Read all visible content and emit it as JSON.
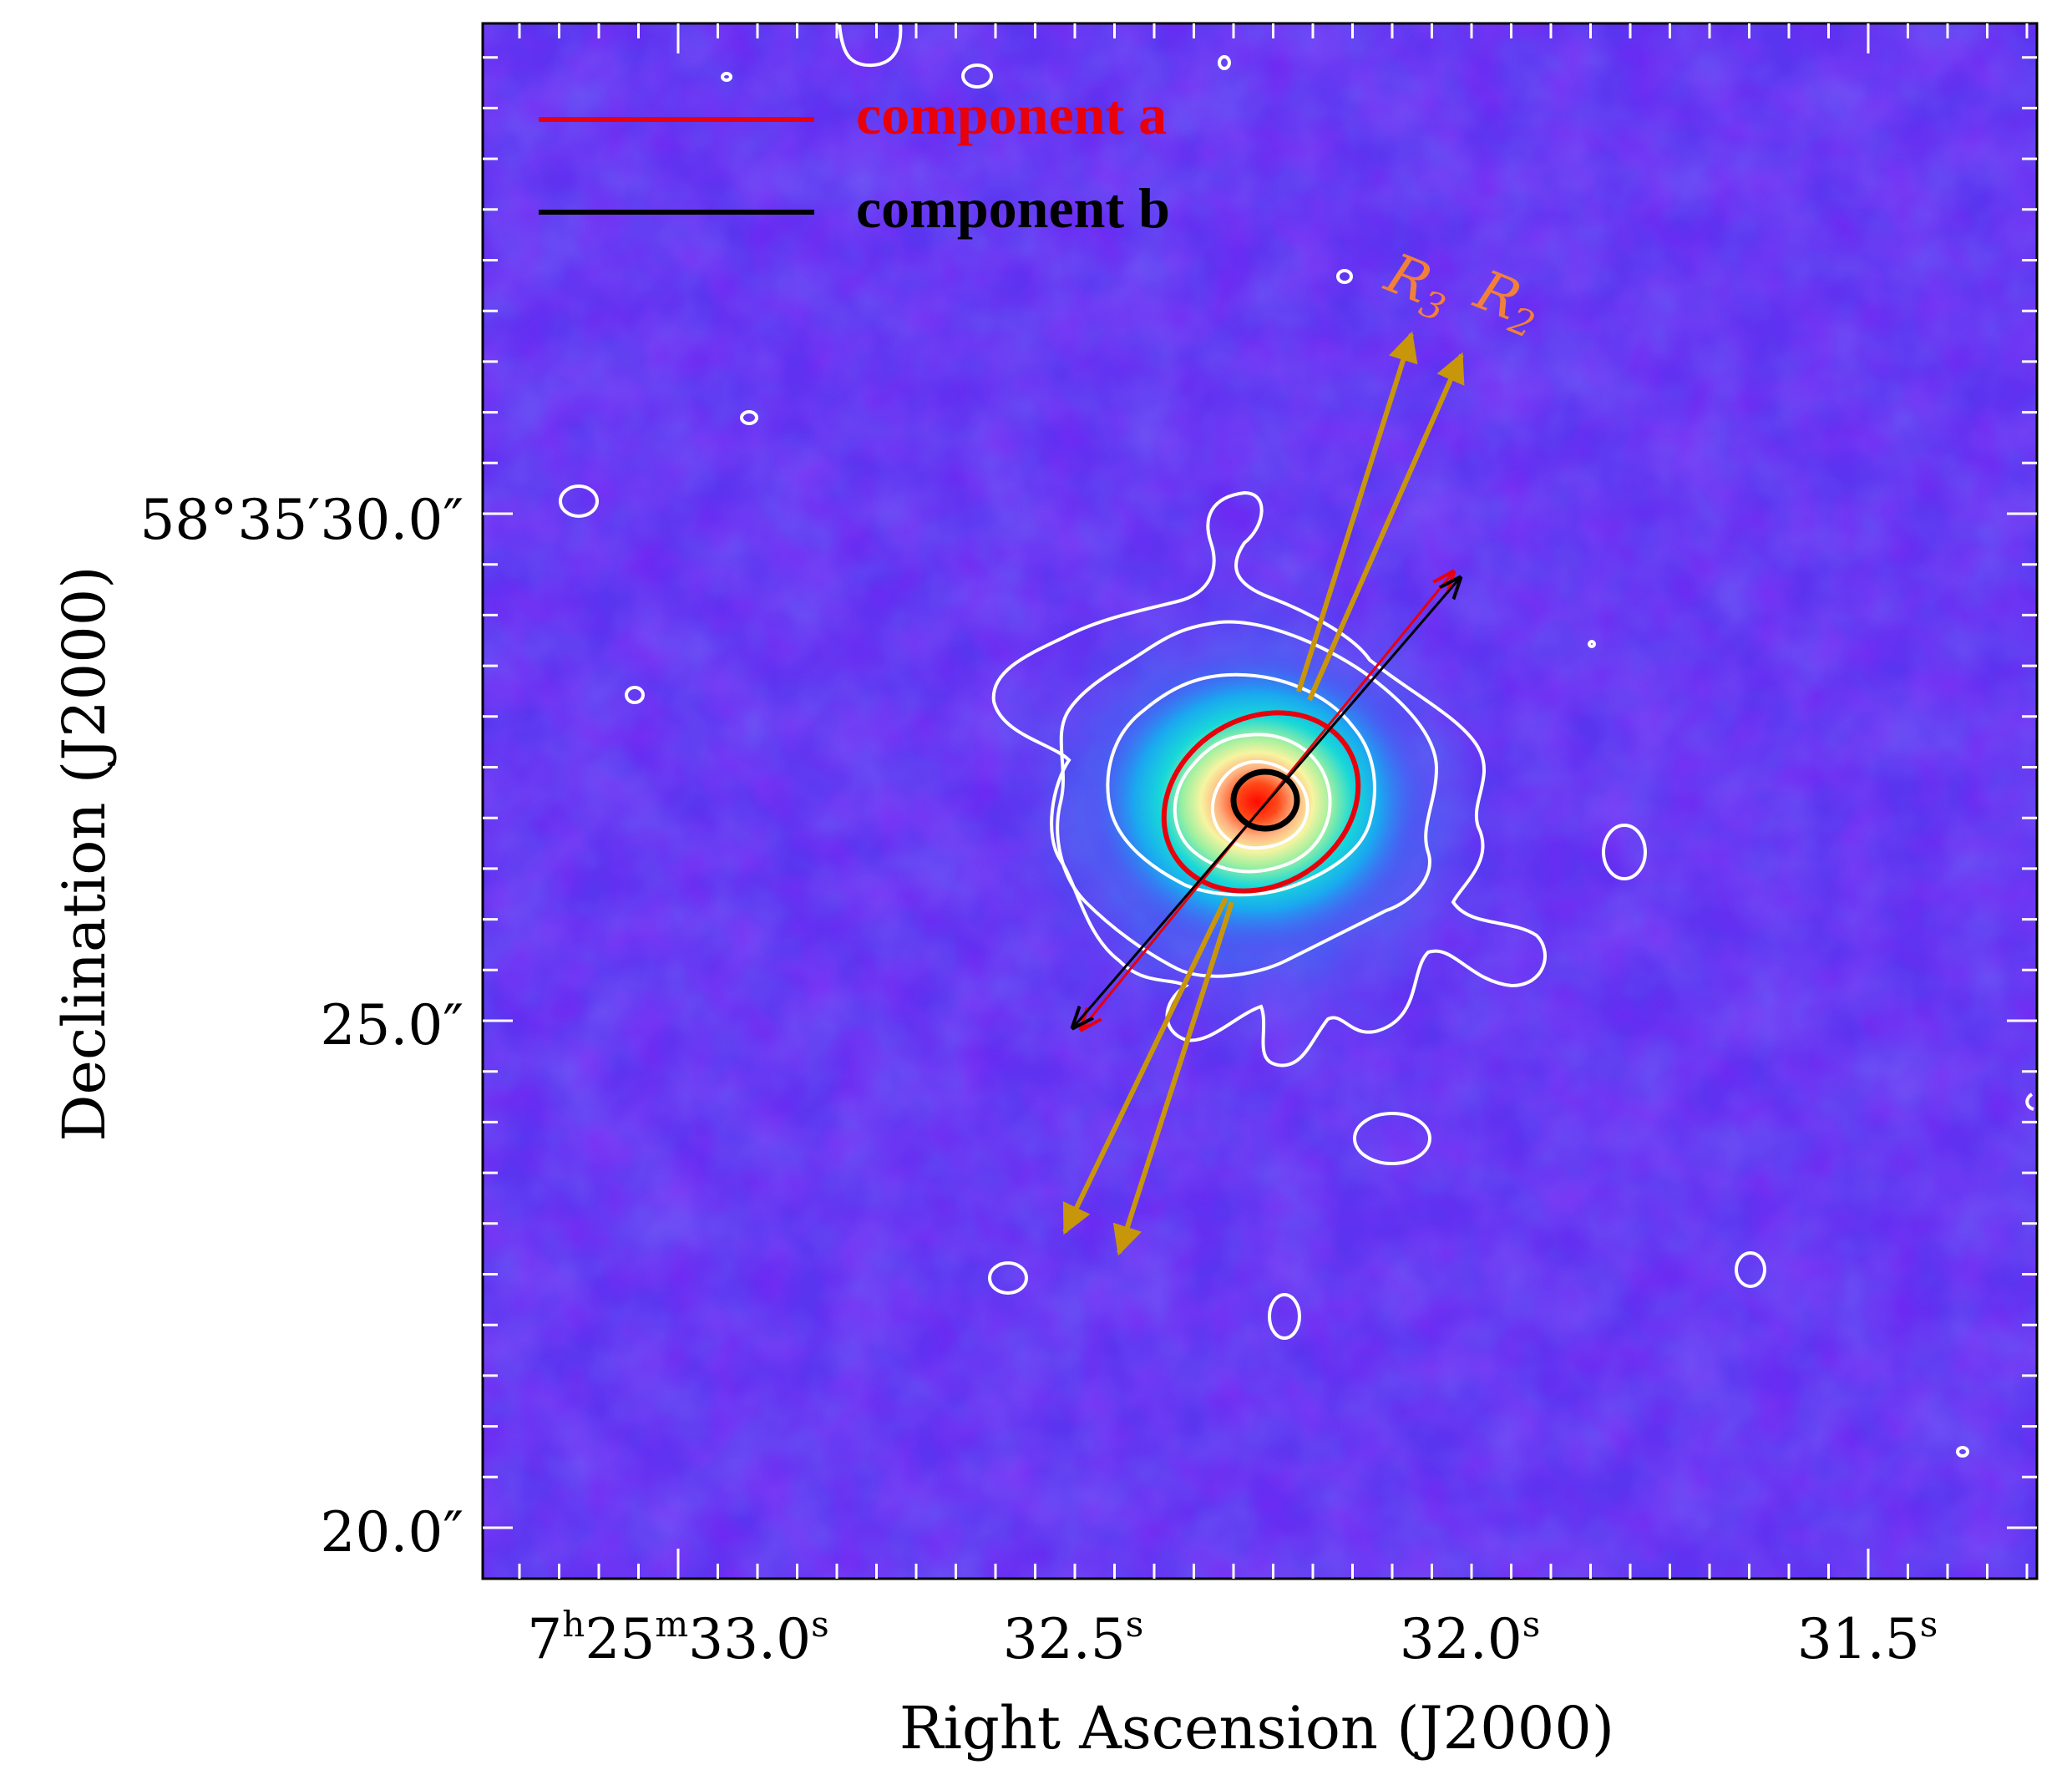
{
  "figure": {
    "xlabel": "Right Ascension (J2000)",
    "ylabel": "Declination (J2000)",
    "x_ticks": [
      {
        "h": "7",
        "hs": "h",
        "m": "25",
        "ms": "m",
        "s": "33.0",
        "ss": "s"
      },
      {
        "s": "32.5",
        "ss": "s"
      },
      {
        "s": "32.0",
        "ss": "s"
      },
      {
        "s": "31.5",
        "ss": "s"
      }
    ],
    "y_ticks": [
      "58°35′30.0″",
      "25.0″",
      "20.0″"
    ],
    "legend": {
      "position": "top-left",
      "entries": [
        {
          "label": "component a",
          "color": "#e8000b"
        },
        {
          "label": "component b",
          "color": "#000000"
        }
      ]
    },
    "annotations": [
      {
        "text": "R",
        "sub": "3",
        "color": "#f0803a"
      },
      {
        "text": "R",
        "sub": "2",
        "color": "#f0803a"
      }
    ],
    "colors": {
      "background": "#5a35f0",
      "contour": "#ffffff",
      "arrow_gold": "#c8960a",
      "component_a": "#e8000b",
      "component_b": "#000000"
    },
    "colormap": "rainbow"
  }
}
